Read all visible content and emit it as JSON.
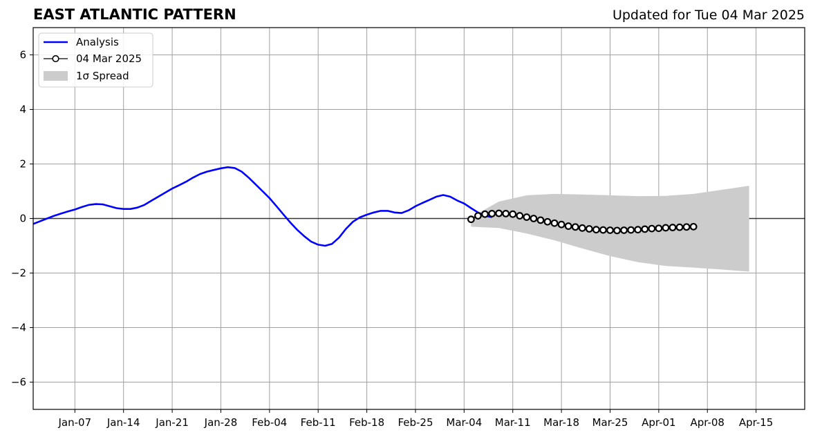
{
  "page": {
    "title_left": "EAST ATLANTIC PATTERN",
    "title_right": "Updated for Tue 04 Mar 2025"
  },
  "chart_data": {
    "type": "line",
    "title": "EAST ATLANTIC PATTERN",
    "subtitle": "Updated for Tue 04 Mar 2025",
    "xlabel": "",
    "ylabel": "",
    "xlim": [
      "2025-01-01",
      "2025-04-22"
    ],
    "ylim": [
      -7,
      7
    ],
    "xticks": [
      {
        "date": "2025-01-07",
        "label": "Jan-07"
      },
      {
        "date": "2025-01-14",
        "label": "Jan-14"
      },
      {
        "date": "2025-01-21",
        "label": "Jan-21"
      },
      {
        "date": "2025-01-28",
        "label": "Jan-28"
      },
      {
        "date": "2025-02-04",
        "label": "Feb-04"
      },
      {
        "date": "2025-02-11",
        "label": "Feb-11"
      },
      {
        "date": "2025-02-18",
        "label": "Feb-18"
      },
      {
        "date": "2025-02-25",
        "label": "Feb-25"
      },
      {
        "date": "2025-03-04",
        "label": "Mar-04"
      },
      {
        "date": "2025-03-11",
        "label": "Mar-11"
      },
      {
        "date": "2025-03-18",
        "label": "Mar-18"
      },
      {
        "date": "2025-03-25",
        "label": "Mar-25"
      },
      {
        "date": "2025-04-01",
        "label": "Apr-01"
      },
      {
        "date": "2025-04-08",
        "label": "Apr-08"
      },
      {
        "date": "2025-04-15",
        "label": "Apr-15"
      }
    ],
    "yticks": [
      {
        "value": -6,
        "label": "−6"
      },
      {
        "value": -4,
        "label": "−4"
      },
      {
        "value": -2,
        "label": "−2"
      },
      {
        "value": 0,
        "label": "0"
      },
      {
        "value": 2,
        "label": "2"
      },
      {
        "value": 4,
        "label": "4"
      },
      {
        "value": 6,
        "label": "6"
      }
    ],
    "grid": true,
    "zero_line": true,
    "legend": {
      "position": "top-left",
      "entries": [
        {
          "label": "Analysis",
          "style": "line",
          "color": "#0000ff"
        },
        {
          "label": "04 Mar 2025",
          "style": "line-circle-marker",
          "color": "#000000"
        },
        {
          "label": "1σ Spread",
          "style": "patch",
          "color": "#cccccc"
        }
      ]
    },
    "series": [
      {
        "name": "Analysis",
        "color": "#0000ff",
        "x_start": "2025-01-01",
        "x_step_days": 1,
        "values": [
          -0.2,
          -0.1,
          0.0,
          0.1,
          0.18,
          0.26,
          0.33,
          0.42,
          0.5,
          0.53,
          0.52,
          0.45,
          0.38,
          0.35,
          0.35,
          0.4,
          0.5,
          0.65,
          0.8,
          0.95,
          1.1,
          1.22,
          1.35,
          1.5,
          1.63,
          1.72,
          1.78,
          1.84,
          1.88,
          1.85,
          1.72,
          1.5,
          1.25,
          1.0,
          0.75,
          0.45,
          0.15,
          -0.15,
          -0.42,
          -0.65,
          -0.85,
          -0.96,
          -1.0,
          -0.93,
          -0.7,
          -0.38,
          -0.12,
          0.04,
          0.14,
          0.22,
          0.28,
          0.28,
          0.22,
          0.2,
          0.3,
          0.45,
          0.57,
          0.68,
          0.8,
          0.86,
          0.8,
          0.66,
          0.55,
          0.38,
          0.22,
          0.1,
          0.05
        ]
      },
      {
        "name": "04 Mar 2025",
        "color": "#000000",
        "marker": "circle",
        "x_start": "2025-03-05",
        "x_step_days": 1,
        "values": [
          -0.03,
          0.1,
          0.16,
          0.18,
          0.19,
          0.18,
          0.16,
          0.1,
          0.05,
          0.0,
          -0.06,
          -0.12,
          -0.17,
          -0.22,
          -0.28,
          -0.31,
          -0.35,
          -0.38,
          -0.41,
          -0.42,
          -0.43,
          -0.44,
          -0.43,
          -0.42,
          -0.41,
          -0.39,
          -0.37,
          -0.36,
          -0.34,
          -0.33,
          -0.32,
          -0.31,
          -0.3
        ]
      }
    ],
    "spread": {
      "name": "1σ Spread",
      "color": "#cccccc",
      "x_start": "2025-03-05",
      "x_step_days": 4,
      "upper": [
        0.05,
        0.62,
        0.85,
        0.9,
        0.88,
        0.85,
        0.82,
        0.83,
        0.9,
        1.05,
        1.2
      ],
      "lower": [
        -0.3,
        -0.35,
        -0.55,
        -0.8,
        -1.1,
        -1.38,
        -1.6,
        -1.74,
        -1.8,
        -1.87,
        -1.95
      ]
    }
  }
}
